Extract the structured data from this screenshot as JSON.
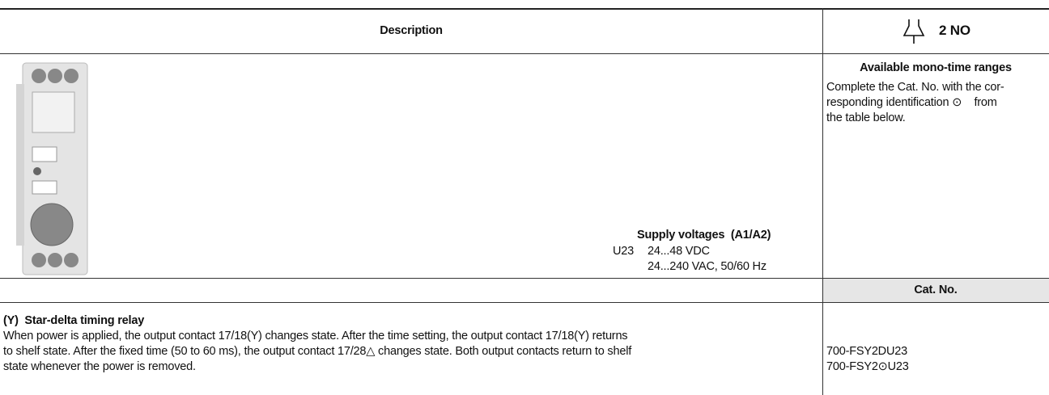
{
  "header": {
    "description": "Description",
    "contacts": "2 NO"
  },
  "right_panel": {
    "title": "Available mono-time ranges",
    "lines": [
      "Complete the Cat. No. with the cor-",
      "responding identification ⊙    from",
      "the table below."
    ]
  },
  "supply": {
    "title": "Supply voltages  (A1/A2)",
    "code": "U23",
    "lines": [
      "24...48 VDC",
      "24...240 VAC, 50/60 Hz"
    ]
  },
  "table": {
    "header": "Cat. No."
  },
  "item": {
    "title": "(Y)  Star-delta timing relay",
    "lines": [
      "When power is applied, the output contact 17/18(Y) changes state. After the time setting, the output contact 17/18(Y) returns",
      "to shelf state. After the fixed time (50 to 60 ms), the output contact 17/28△ changes state. Both output contacts return to shelf",
      "state whenever the power is removed."
    ],
    "cat_nos": [
      "700-FSY2DU23",
      "700-FSY2⊙U23"
    ]
  }
}
